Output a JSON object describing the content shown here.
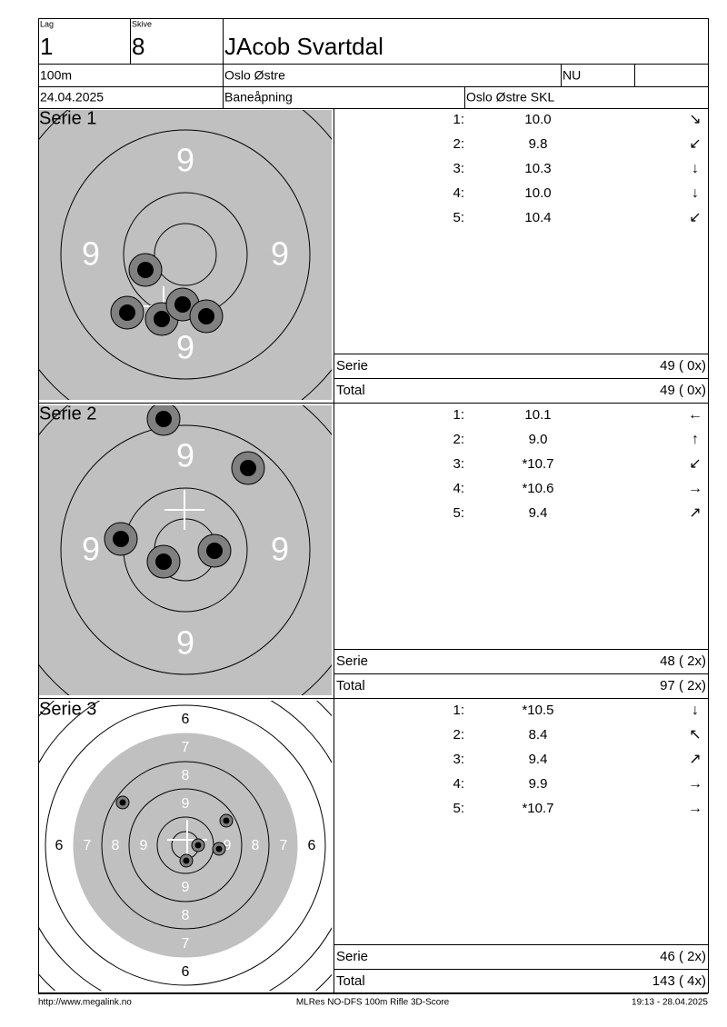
{
  "header": {
    "lag_label": "Lag",
    "lag": "1",
    "skive_label": "Skive",
    "skive": "8",
    "name": "JAcob Svartdal",
    "distance": "100m",
    "club": "Oslo Østre",
    "class": "NU",
    "date": "24.04.2025",
    "event": "Baneåpning",
    "organizer": "Oslo Østre SKL"
  },
  "series": [
    {
      "title": "Serie 1",
      "ring_labels": [
        "9",
        "9",
        "9",
        "9"
      ],
      "shots": [
        {
          "no": "1:",
          "score": "10.0",
          "dir": "↘"
        },
        {
          "no": "2:",
          "score": "9.8",
          "dir": "↙"
        },
        {
          "no": "3:",
          "score": "10.3",
          "dir": "↓"
        },
        {
          "no": "4:",
          "score": "10.0",
          "dir": "↓"
        },
        {
          "no": "5:",
          "score": "10.4",
          "dir": "↙"
        }
      ],
      "serie_label": "Serie",
      "serie_score": "49 ( 0x)",
      "total_label": "Total",
      "total_score": "49 ( 0x)"
    },
    {
      "title": "Serie 2",
      "ring_labels": [
        "9",
        "9",
        "9",
        "9"
      ],
      "shots": [
        {
          "no": "1:",
          "score": "10.1",
          "dir": "←"
        },
        {
          "no": "2:",
          "score": "9.0",
          "dir": "↑"
        },
        {
          "no": "3:",
          "score": "*10.7",
          "dir": "↙"
        },
        {
          "no": "4:",
          "score": "*10.6",
          "dir": "→"
        },
        {
          "no": "5:",
          "score": "9.4",
          "dir": "↗"
        }
      ],
      "serie_label": "Serie",
      "serie_score": "48 ( 2x)",
      "total_label": "Total",
      "total_score": "97 ( 2x)"
    },
    {
      "title": "Serie 3",
      "ring_labels": [
        "6",
        "7",
        "8",
        "9",
        "6",
        "7",
        "8",
        "9",
        "9",
        "8",
        "7",
        "6",
        "9",
        "8",
        "7",
        "6"
      ],
      "shots": [
        {
          "no": "1:",
          "score": "*10.5",
          "dir": "↓"
        },
        {
          "no": "2:",
          "score": "8.4",
          "dir": "↖"
        },
        {
          "no": "3:",
          "score": "9.4",
          "dir": "↗"
        },
        {
          "no": "4:",
          "score": "9.9",
          "dir": "→"
        },
        {
          "no": "5:",
          "score": "*10.7",
          "dir": "→"
        }
      ],
      "serie_label": "Serie",
      "serie_score": "46 ( 2x)",
      "total_label": "Total",
      "total_score": "143 ( 4x)"
    }
  ],
  "footer": {
    "left": "http://www.megalink.no",
    "center": "MLRes NO-DFS 100m Rifle 3D-Score",
    "right": "19:13 - 28.04.2025"
  }
}
